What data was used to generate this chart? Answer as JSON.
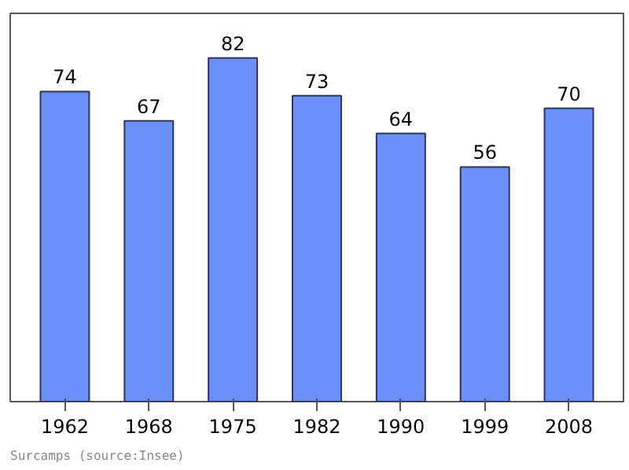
{
  "chart_data": {
    "type": "bar",
    "categories": [
      "1962",
      "1968",
      "1975",
      "1982",
      "1990",
      "1999",
      "2008"
    ],
    "values": [
      74,
      67,
      82,
      73,
      64,
      56,
      70
    ],
    "color": "#6b8ff9",
    "data_labels": true,
    "grid": false,
    "annotations": [
      "Surcamps  (source:Insee)"
    ]
  }
}
